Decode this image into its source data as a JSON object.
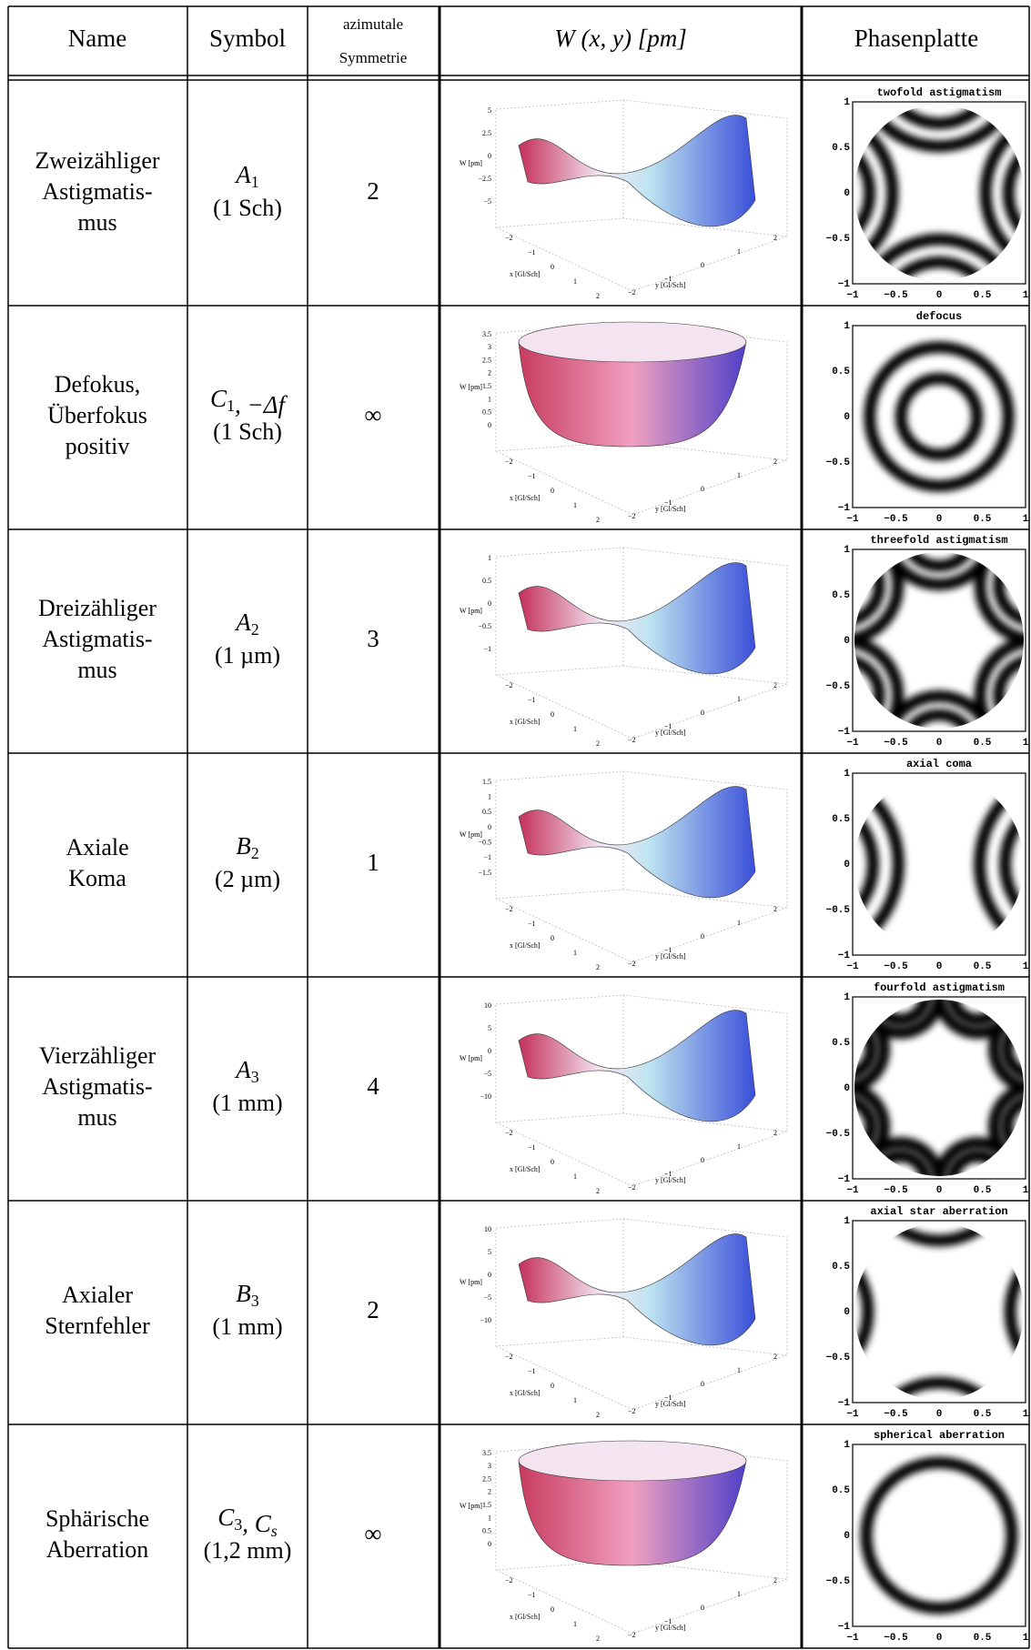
{
  "header": {
    "name": "Name",
    "symbol": "Symbol",
    "symmetry": [
      "azimutale",
      "Symmetrie"
    ],
    "w": "W (x, y) [pm]",
    "plate": "Phasenplatte"
  },
  "plot_labels": {
    "z": "W [pm]",
    "x": "x [Gl/Sch]",
    "y": "y [Gl/Sch]"
  },
  "plot_xyticks": [
    "−2",
    "−1",
    "0",
    "1",
    "2"
  ],
  "plate_ticks": [
    "−1",
    "−0.5",
    "0",
    "0.5",
    "1"
  ],
  "rows": [
    {
      "name": [
        "Zweizähliger",
        "Astigmatis-",
        "mus"
      ],
      "symbol": [
        {
          "text": "A",
          "sub": "1"
        }
      ],
      "unit": "(1 Sch)",
      "symmetry": "2",
      "zticks": [
        "5",
        "2.5",
        "0",
        "−2.5",
        "−5"
      ],
      "plate_title": "twofold astigmatism"
    },
    {
      "name": [
        "Defokus,",
        "Überfokus",
        "positiv"
      ],
      "symbol": [
        {
          "text": "C",
          "sub": "1"
        },
        {
          "text": ", −Δf"
        }
      ],
      "unit": "(1 Sch)",
      "symmetry": "∞",
      "zticks": [
        "3.5",
        "3",
        "2.5",
        "2",
        "1.5",
        "1",
        "0.5",
        "0"
      ],
      "plate_title": "defocus"
    },
    {
      "name": [
        "Dreizähliger",
        "Astigmatis-",
        "mus"
      ],
      "symbol": [
        {
          "text": "A",
          "sub": "2"
        }
      ],
      "unit": "(1 µm)",
      "symmetry": "3",
      "zticks": [
        "1",
        "0.5",
        "0",
        "−0.5",
        "−1"
      ],
      "plate_title": "threefold astigmatism"
    },
    {
      "name": [
        "Axiale",
        "Koma"
      ],
      "symbol": [
        {
          "text": "B",
          "sub": "2"
        }
      ],
      "unit": "(2 µm)",
      "symmetry": "1",
      "zticks": [
        "1.5",
        "1",
        "0.5",
        "0",
        "−0.5",
        "−1",
        "−1.5"
      ],
      "plate_title": "axial coma"
    },
    {
      "name": [
        "Vierzähliger",
        "Astigmatis-",
        "mus"
      ],
      "symbol": [
        {
          "text": "A",
          "sub": "3"
        }
      ],
      "unit": "(1 mm)",
      "symmetry": "4",
      "zticks": [
        "10",
        "5",
        "0",
        "−5",
        "−10"
      ],
      "plate_title": "fourfold astigmatism"
    },
    {
      "name": [
        "Axialer",
        "Sternfehler"
      ],
      "symbol": [
        {
          "text": "B",
          "sub": "3"
        }
      ],
      "unit": "(1 mm)",
      "symmetry": "2",
      "zticks": [
        "10",
        "5",
        "0",
        "−5",
        "−10"
      ],
      "plate_title": "axial star aberration"
    },
    {
      "name": [
        "Sphärische",
        "Aberration"
      ],
      "symbol": [
        {
          "text": "C",
          "sub": "3"
        },
        {
          "text": ", "
        },
        {
          "text": "C",
          "sub": "s"
        }
      ],
      "unit": "(1,2 mm)",
      "symmetry": "∞",
      "zticks": [
        "3.5",
        "3",
        "2.5",
        "2",
        "1.5",
        "1",
        "0.5",
        "0"
      ],
      "plate_title": "spherical aberration"
    }
  ]
}
